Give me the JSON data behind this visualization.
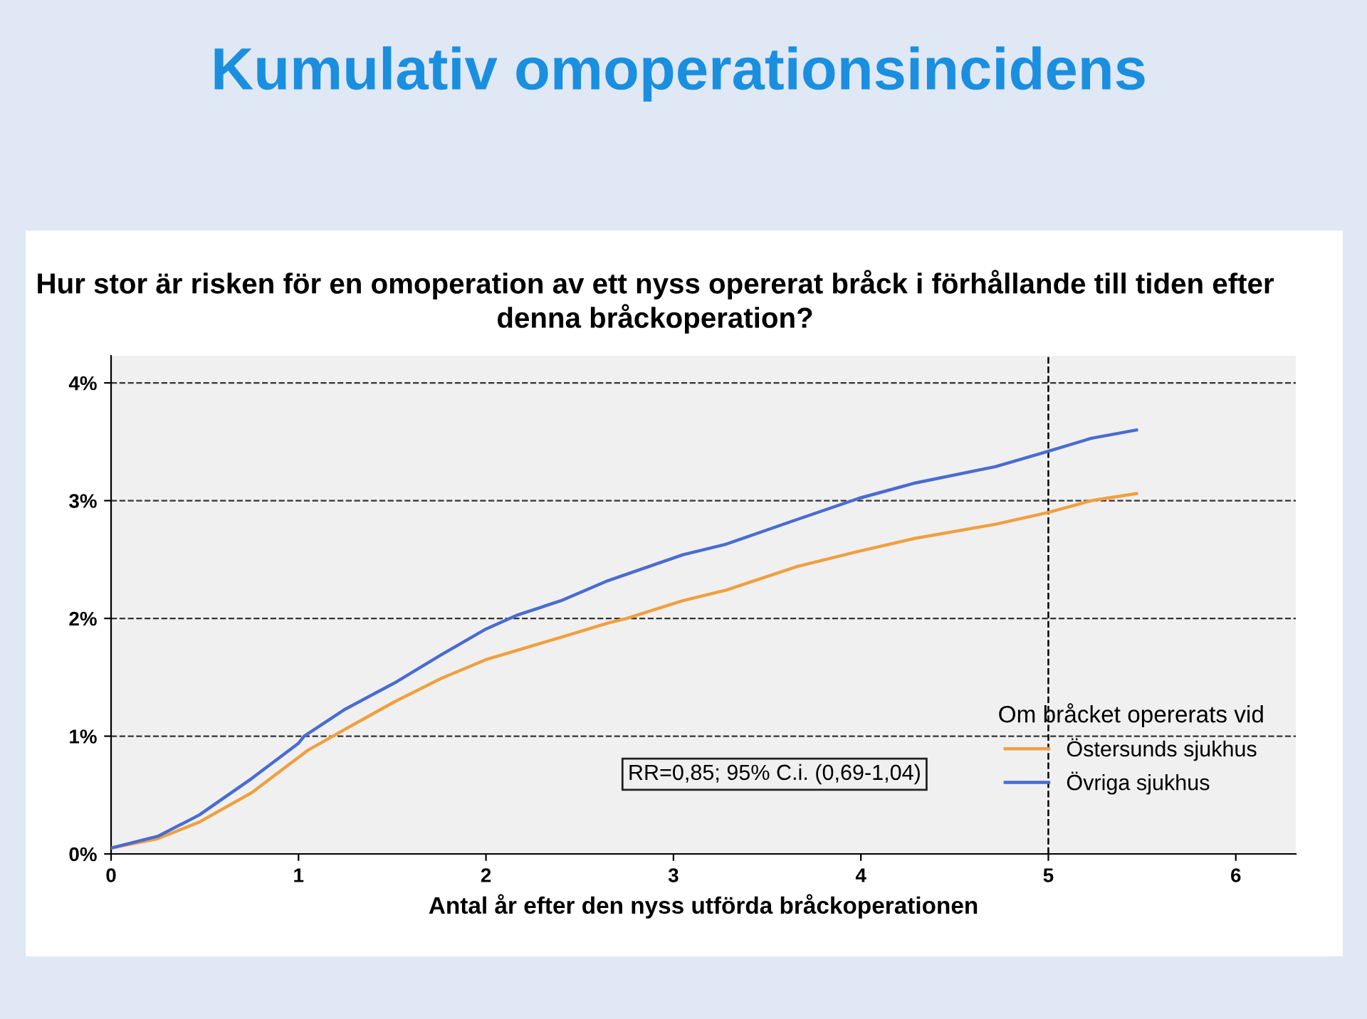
{
  "chart_data": {
    "type": "line",
    "title": "Kumulativ omoperationsincidens",
    "subtitle": "Hur stor är risken för en omoperation av ett nyss opererat bråck i förhållande till tiden efter denna bråckoperation?",
    "xlabel": "Antal år efter den nyss utförda bråckoperationen",
    "legend_title": "Om bråcket opererats vid",
    "annotations": [
      "RR=0,85; 95% C.i. (0,69-1,04)"
    ],
    "series": [
      {
        "name": "Östersunds sjukhus",
        "color": "#f0a040",
        "x": [
          0,
          0.25,
          0.47,
          0.75,
          1.0,
          1.05,
          1.25,
          1.51,
          1.76,
          2.0,
          2.17,
          2.4,
          2.65,
          2.75,
          3.05,
          3.28,
          3.66,
          3.99,
          4.29,
          4.72,
          5.0,
          5.23,
          5.47
        ],
        "values": [
          0.05,
          0.13,
          0.27,
          0.52,
          0.82,
          0.88,
          1.06,
          1.29,
          1.49,
          1.65,
          1.73,
          1.84,
          1.96,
          2.0,
          2.15,
          2.24,
          2.44,
          2.57,
          2.68,
          2.8,
          2.9,
          3.0,
          3.06
        ]
      },
      {
        "name": "Övriga sjukhus",
        "color": "#4a6cd0",
        "x": [
          0,
          0.25,
          0.47,
          0.75,
          1.0,
          1.03,
          1.25,
          1.51,
          1.76,
          2.0,
          2.17,
          2.4,
          2.65,
          3.05,
          3.28,
          3.66,
          3.99,
          4.29,
          4.72,
          5.0,
          5.23,
          5.47
        ],
        "values": [
          0.05,
          0.15,
          0.33,
          0.64,
          0.94,
          1.0,
          1.23,
          1.45,
          1.69,
          1.91,
          2.03,
          2.15,
          2.32,
          2.54,
          2.63,
          2.84,
          3.02,
          3.15,
          3.29,
          3.42,
          3.53,
          3.6
        ]
      }
    ],
    "xlim": [
      0,
      6.32
    ],
    "xticks": [
      0,
      1,
      2,
      3,
      4,
      5,
      6
    ],
    "ylim": [
      0,
      4.23
    ],
    "yticks": [
      {
        "value": 0,
        "label": "0%"
      },
      {
        "value": 1,
        "label": "1%"
      },
      {
        "value": 2,
        "label": "2%"
      },
      {
        "value": 3,
        "label": "3%"
      },
      {
        "value": 4,
        "label": "4%"
      }
    ],
    "ref_lines": [
      {
        "axis": "x",
        "value": 5,
        "color": "#000000",
        "line_style": "dashed"
      }
    ],
    "grid": "y",
    "legend": "bottom right",
    "line_style": "solid",
    "marker": "none"
  }
}
